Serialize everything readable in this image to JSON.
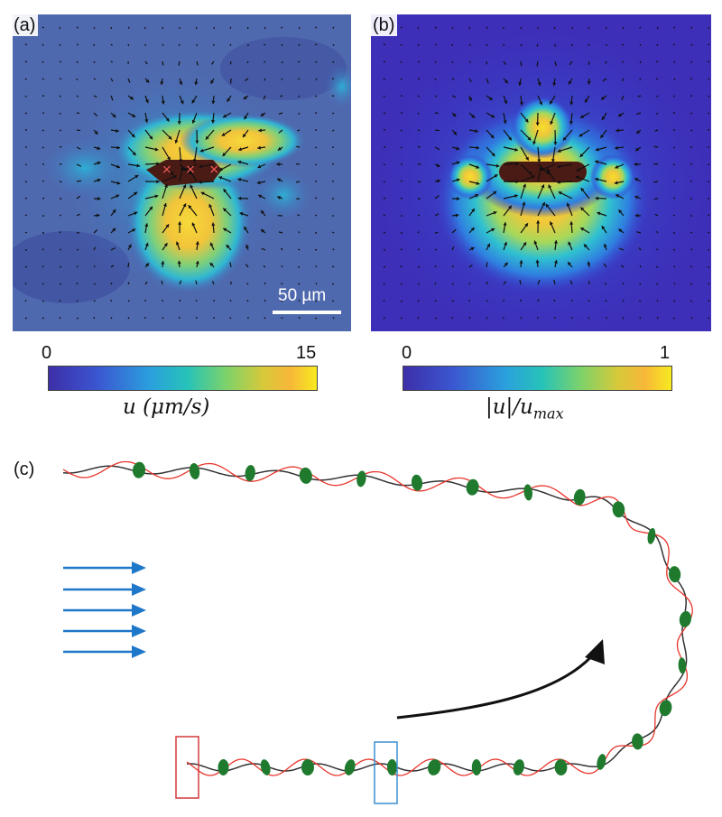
{
  "panels": {
    "a": {
      "label": "(a)",
      "scale_bar": "50 µm",
      "colorbar": {
        "min": "0",
        "max": "15",
        "title": "u (μm/s)"
      },
      "markers": "× × ×"
    },
    "b": {
      "label": "(b)",
      "colorbar": {
        "min": "0",
        "max": "1",
        "title": "|u|/u_max"
      }
    },
    "c": {
      "label": "(c)"
    }
  },
  "colors": {
    "field_low": "#3b3f9a",
    "field_mid": "#2bb5d8",
    "field_high": "#f4d21a",
    "body": "#4a1a14",
    "flow_arrows": "#1f77c9",
    "trajectory_arrow": "#111111",
    "helix_line": "#e8352c",
    "body_green": "#1f7a2e",
    "box_red": "#d43a3a",
    "box_blue": "#3b8fd0"
  }
}
